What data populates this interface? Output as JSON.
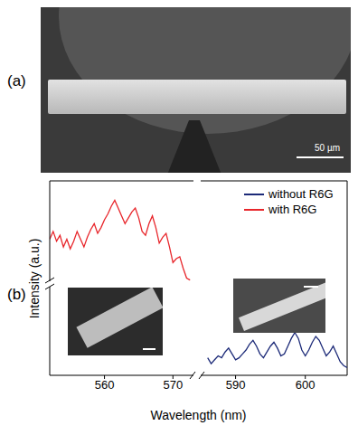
{
  "panel_labels": [
    "(a)",
    "(b)"
  ],
  "scale_bar": "50 µm",
  "chart_data": [
    {
      "type": "line",
      "ylabel": "Intensity (a.u.)",
      "xlabel": "Wavelength (nm)",
      "xlim": [
        552,
        573
      ],
      "xticks": [
        560,
        570
      ],
      "ylim": [
        0,
        10
      ],
      "tick_labels": "x",
      "legend": "upper right",
      "series": [
        {
          "name": "with R6G",
          "color": "#e8262b",
          "x": [
            552,
            552.5,
            553,
            553.5,
            554,
            554.5,
            555,
            555.5,
            556,
            556.5,
            557,
            557.5,
            558,
            558.5,
            559,
            559.5,
            560,
            560.5,
            561,
            561.5,
            562,
            562.5,
            563,
            563.5,
            564,
            564.5,
            565,
            565.5,
            566,
            566.5,
            567,
            567.5,
            568,
            568.5,
            569,
            569.5,
            570,
            570.5,
            571,
            571.5,
            572,
            572.5
          ],
          "values": [
            7.0,
            7.4,
            6.9,
            7.2,
            6.6,
            7.0,
            6.5,
            6.9,
            7.4,
            7.0,
            6.6,
            7.1,
            7.5,
            7.8,
            7.3,
            7.6,
            8.0,
            8.3,
            8.7,
            9.0,
            8.6,
            8.2,
            7.8,
            8.1,
            8.4,
            8.6,
            8.1,
            7.4,
            7.2,
            7.8,
            8.2,
            7.6,
            6.8,
            7.1,
            7.3,
            6.6,
            5.8,
            6.0,
            6.1,
            5.5,
            5.0,
            4.9
          ]
        }
      ]
    },
    {
      "type": "line",
      "xlim": [
        585,
        606
      ],
      "xticks": [
        590,
        600
      ],
      "ylim": [
        0,
        10
      ],
      "tick_labels": "x",
      "series": [
        {
          "name": "without R6G",
          "color": "#1c2a78",
          "x": [
            586,
            586.5,
            587,
            587.5,
            588,
            588.5,
            589,
            589.5,
            590,
            590.5,
            591,
            591.5,
            592,
            592.5,
            593,
            593.5,
            594,
            594.5,
            595,
            595.5,
            596,
            596.5,
            597,
            597.5,
            598,
            598.5,
            599,
            599.5,
            600,
            600.5,
            601,
            601.5,
            602,
            602.5,
            603,
            603.5,
            604,
            604.5,
            605,
            605.5,
            606
          ],
          "values": [
            0.9,
            0.6,
            0.8,
            1.0,
            0.9,
            1.2,
            1.4,
            1.1,
            0.8,
            0.9,
            1.1,
            1.3,
            1.6,
            1.8,
            1.5,
            1.1,
            0.9,
            1.2,
            1.5,
            1.7,
            1.4,
            1.0,
            1.1,
            1.5,
            1.9,
            2.2,
            1.9,
            1.3,
            1.0,
            1.3,
            1.7,
            2.0,
            1.8,
            1.4,
            1.0,
            1.2,
            1.5,
            1.1,
            0.7,
            0.5,
            0.4
          ]
        }
      ]
    }
  ]
}
